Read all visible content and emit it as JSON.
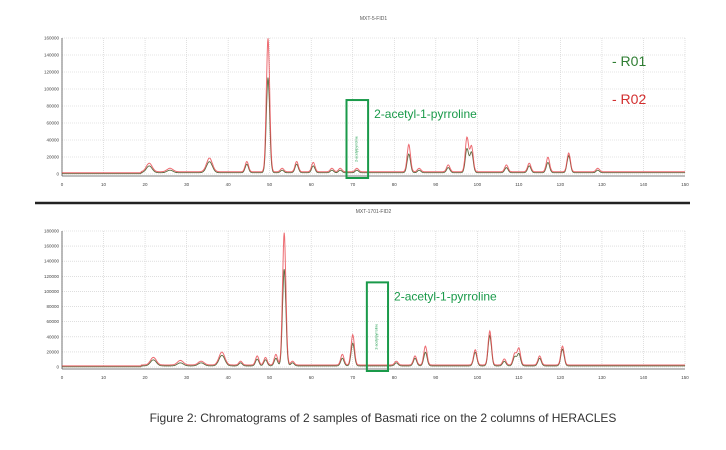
{
  "caption": "Figure 2: Chromatograms of 2 samples of Basmati rice on the 2 columns of HERACLES",
  "colors": {
    "R01": "#4a5a2a",
    "R02": "#e8474f",
    "annotation": "#1a9a4a",
    "legend_R01": "#2e7d32",
    "legend_R02": "#d32f2f"
  },
  "chart_data": [
    {
      "type": "line",
      "title": "MXT-5-FID1",
      "xlim": [
        0,
        150
      ],
      "ylim": [
        0,
        160000
      ],
      "xticks": [
        0,
        10,
        20,
        30,
        40,
        50,
        60,
        70,
        80,
        90,
        100,
        110,
        120,
        130,
        140,
        150
      ],
      "yticks": [
        0,
        20000,
        40000,
        60000,
        80000,
        100000,
        120000,
        140000,
        160000
      ],
      "grid": true,
      "legend": {
        "placement": "top-right",
        "entries": [
          "- R01",
          "- R02"
        ]
      },
      "annotation": {
        "label": "2-acetyl-1-pyrroline",
        "box_label": "2-acetylpyrroline",
        "x_range": [
          68.5,
          73.7
        ],
        "y_top": 87000
      },
      "series": [
        {
          "name": "R01",
          "peaks": [
            [
              21,
              8000
            ],
            [
              26,
              3000
            ],
            [
              35.5,
              13000
            ],
            [
              44.5,
              10000
            ],
            [
              49.6,
              112000
            ],
            [
              53,
              3000
            ],
            [
              56.5,
              10000
            ],
            [
              60.5,
              8000
            ],
            [
              65,
              3000
            ],
            [
              67,
              3000
            ],
            [
              71,
              3000
            ],
            [
              83.5,
              22000
            ],
            [
              86,
              3000
            ],
            [
              93,
              6000
            ],
            [
              97.5,
              28000
            ],
            [
              98.6,
              24000
            ],
            [
              107,
              6000
            ],
            [
              112.5,
              8000
            ],
            [
              117,
              12000
            ],
            [
              122,
              20000
            ],
            [
              129,
              3000
            ]
          ]
        },
        {
          "name": "R02",
          "peaks": [
            [
              21,
              10000
            ],
            [
              26,
              4000
            ],
            [
              35.5,
              16000
            ],
            [
              44.5,
              12000
            ],
            [
              49.6,
              157000
            ],
            [
              53,
              4000
            ],
            [
              56.5,
              12000
            ],
            [
              60.5,
              11000
            ],
            [
              65,
              4000
            ],
            [
              67,
              4000
            ],
            [
              71,
              4000
            ],
            [
              83.5,
              32000
            ],
            [
              86,
              4000
            ],
            [
              93,
              8000
            ],
            [
              97.5,
              40000
            ],
            [
              98.6,
              30000
            ],
            [
              107,
              8000
            ],
            [
              112.5,
              10000
            ],
            [
              117,
              17000
            ],
            [
              122,
              22000
            ],
            [
              129,
              4000
            ]
          ]
        }
      ]
    },
    {
      "type": "line",
      "title": "MXT-1701-FID2",
      "xlim": [
        0,
        150
      ],
      "ylim": [
        0,
        180000
      ],
      "xticks": [
        0,
        10,
        20,
        30,
        40,
        50,
        60,
        70,
        80,
        90,
        100,
        110,
        120,
        130,
        140,
        150
      ],
      "yticks": [
        0,
        20000,
        40000,
        60000,
        80000,
        100000,
        120000,
        140000,
        160000,
        180000
      ],
      "grid": true,
      "annotation": {
        "label": "2-acetyl-1-pyrroline",
        "box_label": "2-acetylpyrroline",
        "x_range": [
          73.4,
          78.5
        ],
        "y_top": 112000
      },
      "series": [
        {
          "name": "R01",
          "peaks": [
            [
              22,
              8000
            ],
            [
              28.5,
              4000
            ],
            [
              33.5,
              4000
            ],
            [
              38.5,
              14000
            ],
            [
              43,
              4000
            ],
            [
              47,
              9000
            ],
            [
              49,
              8000
            ],
            [
              51.5,
              10000
            ],
            [
              53.5,
              128000
            ],
            [
              55.5,
              4000
            ],
            [
              67.5,
              10000
            ],
            [
              70,
              30000
            ],
            [
              80.5,
              4000
            ],
            [
              85,
              10000
            ],
            [
              87.5,
              18000
            ],
            [
              99.5,
              18000
            ],
            [
              103,
              40000
            ],
            [
              106.5,
              6000
            ],
            [
              109,
              12000
            ],
            [
              110,
              16000
            ],
            [
              115,
              10000
            ],
            [
              120.5,
              22000
            ]
          ]
        },
        {
          "name": "R02",
          "peaks": [
            [
              22,
              10000
            ],
            [
              28.5,
              6000
            ],
            [
              33.5,
              5000
            ],
            [
              38.5,
              17000
            ],
            [
              43,
              5000
            ],
            [
              47,
              12000
            ],
            [
              49,
              10000
            ],
            [
              51.5,
              14000
            ],
            [
              53.5,
              175000
            ],
            [
              55.5,
              5000
            ],
            [
              67.5,
              14000
            ],
            [
              70,
              40000
            ],
            [
              80.5,
              5000
            ],
            [
              85,
              12000
            ],
            [
              87.5,
              25000
            ],
            [
              99.5,
              20000
            ],
            [
              103,
              45000
            ],
            [
              106.5,
              8000
            ],
            [
              109,
              15000
            ],
            [
              110,
              22000
            ],
            [
              115,
              12000
            ],
            [
              120.5,
              25000
            ]
          ]
        }
      ]
    }
  ]
}
